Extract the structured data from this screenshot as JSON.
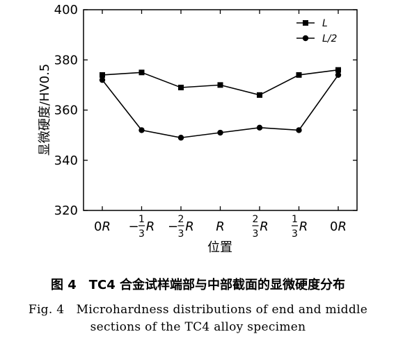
{
  "chart_data": {
    "type": "line",
    "categories": [
      {
        "lead": "0",
        "var": "R"
      },
      {
        "lead": "−",
        "frac": [
          "1",
          "3"
        ],
        "var": "R"
      },
      {
        "lead": "−",
        "frac": [
          "2",
          "3"
        ],
        "var": "R"
      },
      {
        "lead": "",
        "var": "R"
      },
      {
        "lead": "",
        "frac": [
          "2",
          "3"
        ],
        "var": "R"
      },
      {
        "lead": "",
        "frac": [
          "1",
          "3"
        ],
        "var": "R"
      },
      {
        "lead": "0",
        "var": "R"
      }
    ],
    "series": [
      {
        "name": "L",
        "marker": "square",
        "values": [
          374,
          375,
          369,
          370,
          366,
          374,
          376
        ]
      },
      {
        "name": "L/2",
        "marker": "circle",
        "values": [
          372,
          352,
          349,
          351,
          353,
          352,
          374
        ]
      }
    ],
    "xlabel": "位置",
    "ylabel": "显微硬度/HV0.5",
    "ylim": [
      320,
      400
    ],
    "yticks": [
      320,
      340,
      360,
      380,
      400
    ],
    "grid": false,
    "legend_position": "top-right"
  },
  "caption": {
    "cn": "图 4　TC4 合金试样端部与中部截面的显微硬度分布",
    "en_line1": "Fig. 4　Microhardness distributions of end and middle",
    "en_line2": "sections of the TC4 alloy specimen"
  },
  "colors": {
    "line": "#000000",
    "background": "#ffffff"
  }
}
